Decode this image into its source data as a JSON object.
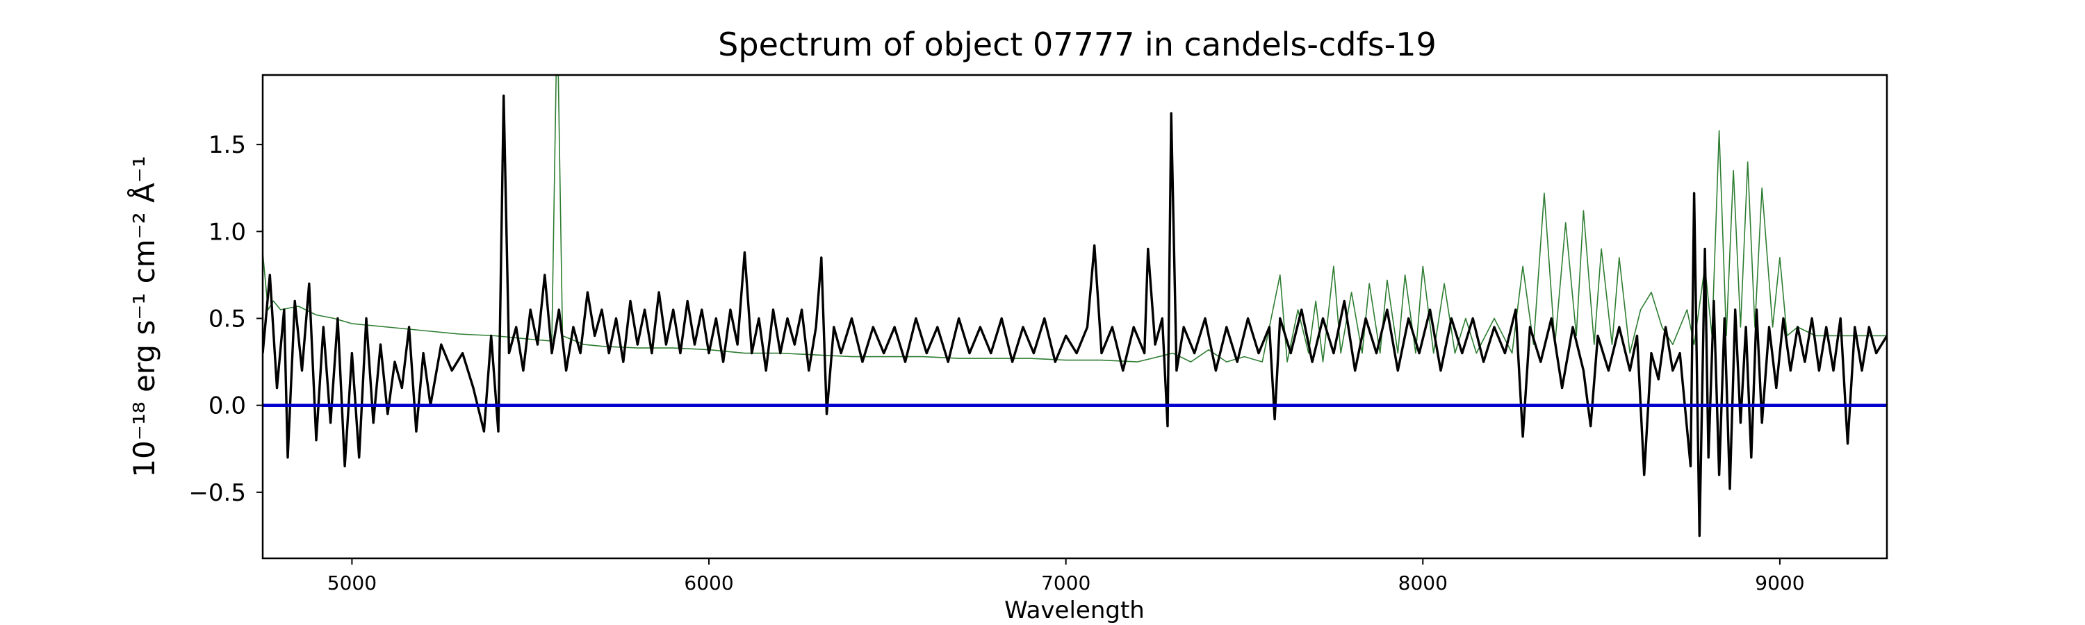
{
  "chart_data": {
    "type": "line",
    "title": "Spectrum of object 07777 in candels-cdfs-19",
    "xlabel": "Wavelength",
    "ylabel": "10⁻¹⁸ erg s⁻¹ cm⁻² Å⁻¹",
    "xlim": [
      4750,
      9300
    ],
    "ylim": [
      -0.88,
      1.9
    ],
    "xticks": [
      5000,
      6000,
      7000,
      8000,
      9000
    ],
    "xtick_labels": [
      "5000",
      "6000",
      "7000",
      "8000",
      "9000"
    ],
    "yticks": [
      -0.5,
      0.0,
      0.5,
      1.0,
      1.5
    ],
    "ytick_labels": [
      "−0.5",
      "0.0",
      "0.5",
      "1.0",
      "1.5"
    ],
    "grid": false,
    "legend": "none",
    "series": [
      {
        "role": "observed flux",
        "color": "#000000",
        "points": [
          [
            4750,
            0.3
          ],
          [
            4770,
            0.75
          ],
          [
            4790,
            0.1
          ],
          [
            4810,
            0.55
          ],
          [
            4820,
            -0.3
          ],
          [
            4840,
            0.6
          ],
          [
            4860,
            0.2
          ],
          [
            4880,
            0.7
          ],
          [
            4900,
            -0.2
          ],
          [
            4920,
            0.45
          ],
          [
            4940,
            -0.1
          ],
          [
            4960,
            0.5
          ],
          [
            4980,
            -0.35
          ],
          [
            5000,
            0.3
          ],
          [
            5020,
            -0.3
          ],
          [
            5040,
            0.5
          ],
          [
            5060,
            -0.1
          ],
          [
            5080,
            0.35
          ],
          [
            5100,
            -0.05
          ],
          [
            5120,
            0.25
          ],
          [
            5140,
            0.1
          ],
          [
            5160,
            0.45
          ],
          [
            5180,
            -0.15
          ],
          [
            5200,
            0.3
          ],
          [
            5220,
            0.0
          ],
          [
            5250,
            0.35
          ],
          [
            5280,
            0.2
          ],
          [
            5310,
            0.3
          ],
          [
            5340,
            0.1
          ],
          [
            5370,
            -0.15
          ],
          [
            5390,
            0.4
          ],
          [
            5410,
            -0.15
          ],
          [
            5425,
            1.78
          ],
          [
            5440,
            0.3
          ],
          [
            5460,
            0.45
          ],
          [
            5480,
            0.2
          ],
          [
            5500,
            0.55
          ],
          [
            5520,
            0.35
          ],
          [
            5540,
            0.75
          ],
          [
            5560,
            0.3
          ],
          [
            5580,
            0.55
          ],
          [
            5600,
            0.2
          ],
          [
            5620,
            0.45
          ],
          [
            5640,
            0.3
          ],
          [
            5660,
            0.65
          ],
          [
            5680,
            0.4
          ],
          [
            5700,
            0.55
          ],
          [
            5720,
            0.3
          ],
          [
            5740,
            0.5
          ],
          [
            5760,
            0.25
          ],
          [
            5780,
            0.6
          ],
          [
            5800,
            0.35
          ],
          [
            5820,
            0.55
          ],
          [
            5840,
            0.3
          ],
          [
            5860,
            0.65
          ],
          [
            5880,
            0.35
          ],
          [
            5900,
            0.55
          ],
          [
            5920,
            0.3
          ],
          [
            5940,
            0.6
          ],
          [
            5960,
            0.35
          ],
          [
            5980,
            0.55
          ],
          [
            6000,
            0.3
          ],
          [
            6020,
            0.5
          ],
          [
            6040,
            0.25
          ],
          [
            6060,
            0.55
          ],
          [
            6080,
            0.35
          ],
          [
            6100,
            0.88
          ],
          [
            6120,
            0.3
          ],
          [
            6140,
            0.5
          ],
          [
            6160,
            0.2
          ],
          [
            6180,
            0.55
          ],
          [
            6200,
            0.3
          ],
          [
            6220,
            0.5
          ],
          [
            6240,
            0.35
          ],
          [
            6260,
            0.55
          ],
          [
            6280,
            0.2
          ],
          [
            6300,
            0.45
          ],
          [
            6315,
            0.85
          ],
          [
            6330,
            -0.05
          ],
          [
            6350,
            0.45
          ],
          [
            6370,
            0.3
          ],
          [
            6400,
            0.5
          ],
          [
            6430,
            0.25
          ],
          [
            6460,
            0.45
          ],
          [
            6490,
            0.3
          ],
          [
            6520,
            0.45
          ],
          [
            6550,
            0.25
          ],
          [
            6580,
            0.5
          ],
          [
            6610,
            0.3
          ],
          [
            6640,
            0.45
          ],
          [
            6670,
            0.25
          ],
          [
            6700,
            0.5
          ],
          [
            6730,
            0.3
          ],
          [
            6760,
            0.45
          ],
          [
            6790,
            0.3
          ],
          [
            6820,
            0.5
          ],
          [
            6850,
            0.25
          ],
          [
            6880,
            0.45
          ],
          [
            6910,
            0.3
          ],
          [
            6940,
            0.5
          ],
          [
            6970,
            0.25
          ],
          [
            7000,
            0.4
          ],
          [
            7030,
            0.3
          ],
          [
            7060,
            0.45
          ],
          [
            7080,
            0.92
          ],
          [
            7100,
            0.3
          ],
          [
            7130,
            0.45
          ],
          [
            7160,
            0.2
          ],
          [
            7190,
            0.45
          ],
          [
            7220,
            0.3
          ],
          [
            7230,
            0.9
          ],
          [
            7250,
            0.35
          ],
          [
            7270,
            0.5
          ],
          [
            7285,
            -0.12
          ],
          [
            7295,
            1.68
          ],
          [
            7310,
            0.2
          ],
          [
            7330,
            0.45
          ],
          [
            7360,
            0.3
          ],
          [
            7390,
            0.5
          ],
          [
            7420,
            0.2
          ],
          [
            7450,
            0.45
          ],
          [
            7480,
            0.25
          ],
          [
            7510,
            0.5
          ],
          [
            7540,
            0.3
          ],
          [
            7570,
            0.45
          ],
          [
            7585,
            -0.08
          ],
          [
            7600,
            0.5
          ],
          [
            7630,
            0.3
          ],
          [
            7660,
            0.55
          ],
          [
            7690,
            0.25
          ],
          [
            7720,
            0.5
          ],
          [
            7750,
            0.3
          ],
          [
            7780,
            0.6
          ],
          [
            7810,
            0.2
          ],
          [
            7840,
            0.5
          ],
          [
            7870,
            0.3
          ],
          [
            7900,
            0.55
          ],
          [
            7930,
            0.2
          ],
          [
            7960,
            0.5
          ],
          [
            7990,
            0.3
          ],
          [
            8020,
            0.55
          ],
          [
            8050,
            0.2
          ],
          [
            8080,
            0.5
          ],
          [
            8110,
            0.3
          ],
          [
            8140,
            0.5
          ],
          [
            8170,
            0.25
          ],
          [
            8200,
            0.45
          ],
          [
            8230,
            0.3
          ],
          [
            8260,
            0.55
          ],
          [
            8280,
            -0.18
          ],
          [
            8300,
            0.45
          ],
          [
            8330,
            0.25
          ],
          [
            8360,
            0.5
          ],
          [
            8390,
            0.1
          ],
          [
            8420,
            0.45
          ],
          [
            8450,
            0.2
          ],
          [
            8470,
            -0.12
          ],
          [
            8490,
            0.4
          ],
          [
            8520,
            0.2
          ],
          [
            8550,
            0.45
          ],
          [
            8580,
            0.2
          ],
          [
            8600,
            0.4
          ],
          [
            8620,
            -0.4
          ],
          [
            8640,
            0.3
          ],
          [
            8660,
            0.15
          ],
          [
            8680,
            0.45
          ],
          [
            8700,
            0.2
          ],
          [
            8720,
            0.3
          ],
          [
            8750,
            -0.35
          ],
          [
            8760,
            1.22
          ],
          [
            8775,
            -0.75
          ],
          [
            8790,
            0.9
          ],
          [
            8800,
            -0.3
          ],
          [
            8815,
            0.6
          ],
          [
            8830,
            -0.4
          ],
          [
            8845,
            0.5
          ],
          [
            8860,
            -0.48
          ],
          [
            8875,
            0.55
          ],
          [
            8890,
            -0.1
          ],
          [
            8905,
            0.45
          ],
          [
            8920,
            -0.3
          ],
          [
            8935,
            0.55
          ],
          [
            8950,
            -0.1
          ],
          [
            8970,
            0.45
          ],
          [
            8990,
            0.1
          ],
          [
            9010,
            0.5
          ],
          [
            9030,
            0.2
          ],
          [
            9050,
            0.45
          ],
          [
            9070,
            0.25
          ],
          [
            9090,
            0.5
          ],
          [
            9110,
            0.2
          ],
          [
            9130,
            0.45
          ],
          [
            9150,
            0.2
          ],
          [
            9170,
            0.5
          ],
          [
            9190,
            -0.22
          ],
          [
            9210,
            0.45
          ],
          [
            9230,
            0.2
          ],
          [
            9250,
            0.45
          ],
          [
            9270,
            0.3
          ],
          [
            9300,
            0.4
          ]
        ]
      },
      {
        "role": "model spectrum",
        "color": "#2e7d32",
        "points": [
          [
            4750,
            0.88
          ],
          [
            4765,
            0.55
          ],
          [
            4780,
            0.6
          ],
          [
            4800,
            0.55
          ],
          [
            4850,
            0.57
          ],
          [
            4900,
            0.52
          ],
          [
            4950,
            0.5
          ],
          [
            5000,
            0.47
          ],
          [
            5100,
            0.45
          ],
          [
            5200,
            0.43
          ],
          [
            5300,
            0.41
          ],
          [
            5400,
            0.4
          ],
          [
            5500,
            0.38
          ],
          [
            5560,
            0.37
          ],
          [
            5572,
            1.9
          ],
          [
            5578,
            1.9
          ],
          [
            5590,
            0.4
          ],
          [
            5650,
            0.35
          ],
          [
            5700,
            0.34
          ],
          [
            5800,
            0.33
          ],
          [
            5900,
            0.33
          ],
          [
            6000,
            0.32
          ],
          [
            6100,
            0.3
          ],
          [
            6200,
            0.3
          ],
          [
            6300,
            0.29
          ],
          [
            6400,
            0.28
          ],
          [
            6500,
            0.28
          ],
          [
            6600,
            0.28
          ],
          [
            6700,
            0.27
          ],
          [
            6800,
            0.27
          ],
          [
            6900,
            0.27
          ],
          [
            7000,
            0.26
          ],
          [
            7100,
            0.26
          ],
          [
            7200,
            0.25
          ],
          [
            7300,
            0.3
          ],
          [
            7350,
            0.25
          ],
          [
            7400,
            0.32
          ],
          [
            7450,
            0.25
          ],
          [
            7500,
            0.28
          ],
          [
            7550,
            0.25
          ],
          [
            7600,
            0.75
          ],
          [
            7620,
            0.25
          ],
          [
            7650,
            0.55
          ],
          [
            7680,
            0.3
          ],
          [
            7700,
            0.6
          ],
          [
            7720,
            0.25
          ],
          [
            7750,
            0.8
          ],
          [
            7770,
            0.3
          ],
          [
            7800,
            0.65
          ],
          [
            7830,
            0.3
          ],
          [
            7850,
            0.7
          ],
          [
            7880,
            0.3
          ],
          [
            7900,
            0.72
          ],
          [
            7930,
            0.3
          ],
          [
            7950,
            0.75
          ],
          [
            7980,
            0.3
          ],
          [
            8000,
            0.8
          ],
          [
            8030,
            0.3
          ],
          [
            8060,
            0.7
          ],
          [
            8090,
            0.3
          ],
          [
            8120,
            0.5
          ],
          [
            8150,
            0.3
          ],
          [
            8200,
            0.5
          ],
          [
            8250,
            0.3
          ],
          [
            8280,
            0.8
          ],
          [
            8310,
            0.35
          ],
          [
            8340,
            1.22
          ],
          [
            8370,
            0.35
          ],
          [
            8400,
            1.05
          ],
          [
            8430,
            0.4
          ],
          [
            8450,
            1.12
          ],
          [
            8480,
            0.35
          ],
          [
            8500,
            0.9
          ],
          [
            8530,
            0.35
          ],
          [
            8550,
            0.85
          ],
          [
            8580,
            0.3
          ],
          [
            8610,
            0.55
          ],
          [
            8640,
            0.65
          ],
          [
            8670,
            0.45
          ],
          [
            8700,
            0.35
          ],
          [
            8740,
            0.55
          ],
          [
            8760,
            0.35
          ],
          [
            8790,
            0.8
          ],
          [
            8810,
            0.4
          ],
          [
            8830,
            1.58
          ],
          [
            8850,
            0.4
          ],
          [
            8870,
            1.35
          ],
          [
            8890,
            0.45
          ],
          [
            8910,
            1.4
          ],
          [
            8930,
            0.45
          ],
          [
            8950,
            1.25
          ],
          [
            8980,
            0.45
          ],
          [
            9000,
            0.85
          ],
          [
            9020,
            0.4
          ],
          [
            9050,
            0.45
          ],
          [
            9100,
            0.4
          ],
          [
            9150,
            0.4
          ],
          [
            9200,
            0.4
          ],
          [
            9250,
            0.4
          ],
          [
            9300,
            0.4
          ]
        ]
      },
      {
        "role": "zero level",
        "color": "#0000cc",
        "points": [
          [
            4750,
            0.0
          ],
          [
            9300,
            0.0
          ]
        ]
      }
    ]
  }
}
